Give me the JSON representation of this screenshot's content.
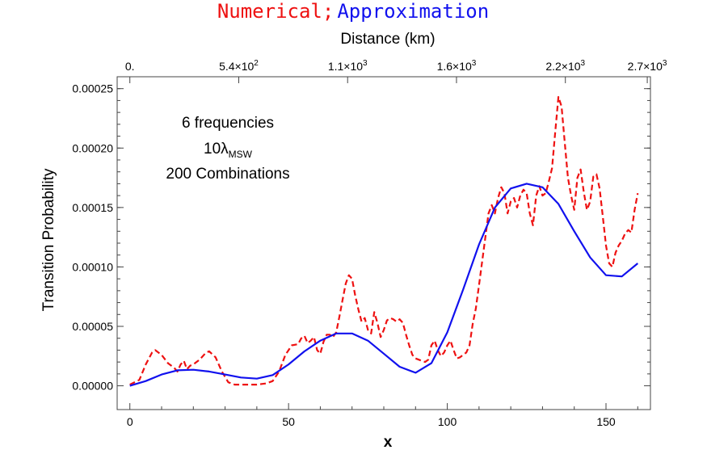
{
  "title": {
    "part1": "Numerical;",
    "part2": "Approximation",
    "color1": "#ee1111",
    "color2": "#1111ee"
  },
  "chart_data": {
    "type": "line",
    "xlabel": "x",
    "ylabel": "Transition Probability",
    "top_axis_label": "Distance (km)",
    "xlim": [
      -4,
      164
    ],
    "ylim": [
      -2e-05,
      0.00026
    ],
    "grid": false,
    "x_ticks": [
      0,
      50,
      100,
      150
    ],
    "x_tick_labels": [
      "0",
      "50",
      "100",
      "150"
    ],
    "y_ticks": [
      0,
      5e-05,
      0.0001,
      0.00015,
      0.0002,
      0.00025
    ],
    "y_tick_labels": [
      "0.00000",
      "0.00005",
      "0.00010",
      "0.00015",
      "0.00020",
      "0.00025"
    ],
    "top_ticks": [
      0,
      34.3,
      68.6,
      102.9,
      137.2,
      163
    ],
    "top_tick_labels": [
      {
        "base": "0.",
        "exp": ""
      },
      {
        "base": "5.4×10",
        "exp": "2"
      },
      {
        "base": "1.1×10",
        "exp": "3"
      },
      {
        "base": "1.6×10",
        "exp": "3"
      },
      {
        "base": "2.2×10",
        "exp": "3"
      },
      {
        "base": "2.7×10",
        "exp": "3"
      }
    ],
    "annotations": {
      "line1": "6 frequencies",
      "line2_main": "10λ",
      "line2_sub": "MSW",
      "line3": "200 Combinations"
    },
    "series": [
      {
        "color": "#ee1111",
        "style": "dashed",
        "x": [
          0,
          3,
          5,
          7,
          8,
          10,
          12,
          14,
          15,
          16,
          17,
          18,
          19,
          20,
          22,
          24,
          25,
          27,
          29,
          31,
          33,
          35,
          37,
          40,
          43,
          45,
          47,
          49,
          51,
          53,
          54,
          55,
          56,
          57,
          58,
          59,
          60,
          61,
          62,
          63,
          64,
          65,
          66,
          67,
          68,
          69,
          70,
          71,
          72,
          73,
          74,
          75,
          76,
          77,
          78,
          79,
          80,
          81,
          82,
          83,
          84,
          85,
          86,
          87,
          88,
          89,
          90,
          91,
          92,
          93,
          94,
          95,
          96,
          97,
          98,
          99,
          100,
          101,
          102,
          103,
          104,
          105,
          106,
          107,
          108,
          109,
          110,
          111,
          112,
          113,
          114,
          115,
          116,
          117,
          118,
          119,
          120,
          121,
          122,
          123,
          124,
          125,
          126,
          127,
          128,
          129,
          130,
          131,
          132,
          133,
          134,
          135,
          136,
          137,
          138,
          139,
          140,
          141,
          142,
          143,
          144,
          145,
          146,
          147,
          148,
          149,
          150,
          151,
          152,
          153,
          154,
          155,
          156,
          157,
          158,
          159,
          160
        ],
        "y": [
          1e-06,
          5e-06,
          1.8e-05,
          2.8e-05,
          3e-05,
          2.6e-05,
          1.9e-05,
          1.5e-05,
          1.2e-05,
          1.8e-05,
          2.1e-05,
          1.4e-05,
          1.7e-05,
          1.8e-05,
          2.2e-05,
          2.8e-05,
          2.9e-05,
          2.4e-05,
          1.2e-05,
          3e-06,
          1e-06,
          1e-06,
          1e-06,
          1e-06,
          2e-06,
          4e-06,
          1.2e-05,
          2.6e-05,
          3.4e-05,
          3.5e-05,
          4e-05,
          4.2e-05,
          3.6e-05,
          3.8e-05,
          4.1e-05,
          3e-05,
          2.7e-05,
          3.7e-05,
          4.3e-05,
          4.3e-05,
          4.1e-05,
          4.5e-05,
          5.8e-05,
          7.2e-05,
          8.6e-05,
          9.3e-05,
          9e-05,
          7.6e-05,
          6.4e-05,
          5.4e-05,
          5.7e-05,
          4.7e-05,
          4.4e-05,
          6.2e-05,
          5.3e-05,
          4.1e-05,
          4.7e-05,
          5.5e-05,
          5.7e-05,
          5.6e-05,
          5.4e-05,
          5.6e-05,
          5.3e-05,
          4.3e-05,
          3.4e-05,
          2.6e-05,
          2.3e-05,
          2.2e-05,
          2.1e-05,
          2e-05,
          2.2e-05,
          3.4e-05,
          3.8e-05,
          3e-05,
          2.5e-05,
          2.8e-05,
          3.4e-05,
          3.8e-05,
          3e-05,
          2.3e-05,
          2.4e-05,
          2.6e-05,
          2.8e-05,
          3.4e-05,
          5.2e-05,
          6.5e-05,
          8.5e-05,
          0.000105,
          0.000125,
          0.000145,
          0.000152,
          0.000145,
          0.000158,
          0.000167,
          0.000162,
          0.000145,
          0.000155,
          0.000158,
          0.00015,
          0.00016,
          0.000165,
          0.000162,
          0.000145,
          0.000135,
          0.00016,
          0.000168,
          0.00016,
          0.000162,
          0.000172,
          0.000183,
          0.000213,
          0.000243,
          0.000235,
          0.000205,
          0.000175,
          0.00016,
          0.000148,
          0.000175,
          0.000182,
          0.000163,
          0.000148,
          0.000155,
          0.000176,
          0.000178,
          0.000166,
          0.000142,
          0.000118,
          0.000103,
          0.0001,
          0.000112,
          0.000118,
          0.000122,
          0.000128,
          0.000131,
          0.000129,
          0.000148,
          0.000162
        ]
      },
      {
        "color": "#1111ee",
        "style": "solid",
        "x": [
          0,
          5,
          10,
          15,
          20,
          25,
          30,
          35,
          40,
          45,
          50,
          55,
          60,
          65,
          70,
          75,
          80,
          85,
          90,
          95,
          100,
          105,
          110,
          115,
          120,
          125,
          130,
          135,
          140,
          145,
          150,
          155,
          160
        ],
        "y": [
          0.0,
          4e-06,
          9.5e-06,
          1.3e-05,
          1.35e-05,
          1.2e-05,
          9.5e-06,
          7e-06,
          6e-06,
          9e-06,
          1.8e-05,
          2.9e-05,
          3.8e-05,
          4.4e-05,
          4.4e-05,
          3.8e-05,
          2.7e-05,
          1.6e-05,
          1.1e-05,
          1.9e-05,
          4.5e-05,
          8.1e-05,
          0.000119,
          0.00015,
          0.000166,
          0.00017,
          0.000167,
          0.000153,
          0.00013,
          0.000108,
          9.3e-05,
          9.2e-05,
          0.000103
        ]
      }
    ]
  }
}
